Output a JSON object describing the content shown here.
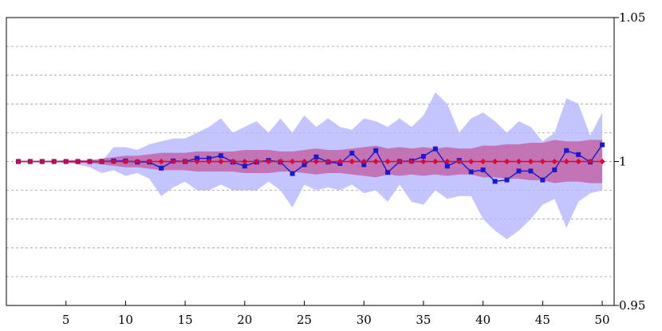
{
  "chart_data": {
    "type": "line",
    "title": "",
    "xlabel": "",
    "ylabel": "",
    "xlim": [
      0,
      51
    ],
    "ylim": [
      0.95,
      1.05
    ],
    "y_axis_side": "right",
    "grid": "horizontal dashed",
    "x_ticks": [
      5,
      10,
      15,
      20,
      25,
      30,
      35,
      40,
      45,
      50
    ],
    "x_tick_labels": [
      "5",
      "10",
      "15",
      "20",
      "25",
      "30",
      "35",
      "40",
      "45",
      "50"
    ],
    "y_ticks": [
      0.95,
      1,
      1.05
    ],
    "y_tick_labels": [
      "0.95",
      "1",
      "1.05"
    ],
    "y_gridlines": [
      0.96,
      0.97,
      0.98,
      0.99,
      1.0,
      1.01,
      1.02,
      1.03,
      1.04
    ],
    "x": [
      1,
      2,
      3,
      4,
      5,
      6,
      7,
      8,
      9,
      10,
      11,
      12,
      13,
      14,
      15,
      16,
      17,
      18,
      19,
      20,
      21,
      22,
      23,
      24,
      25,
      26,
      27,
      28,
      29,
      30,
      31,
      32,
      33,
      34,
      35,
      36,
      37,
      38,
      39,
      40,
      41,
      42,
      43,
      44,
      45,
      46,
      47,
      48,
      49,
      50
    ],
    "series": [
      {
        "marker": "square",
        "color": "#1a1acc",
        "values": [
          1.0,
          1.0,
          1.0,
          1.0,
          1.0,
          1.0,
          1.0,
          1.0,
          1.0002,
          1.0002,
          0.9998,
          0.9998,
          0.9977,
          1.0002,
          1.0,
          1.0011,
          1.0011,
          1.002,
          0.9998,
          0.9984,
          0.9998,
          1.0004,
          0.9998,
          0.9958,
          0.9989,
          1.0016,
          0.9998,
          0.9993,
          1.0029,
          0.9989,
          1.0038,
          0.9962,
          1.0,
          1.0002,
          1.0018,
          1.0044,
          0.9984,
          1.0004,
          0.9964,
          0.9971,
          0.9931,
          0.9936,
          0.9967,
          0.9967,
          0.9936,
          0.9971,
          1.0038,
          1.0024,
          0.9998,
          1.0058
        ],
        "band": {
          "color": "#b5b5ff",
          "upper": [
            1.0,
            1.0,
            1.0,
            1.0,
            1.0,
            1.0,
            1.0,
            1.0,
            1.005,
            1.005,
            1.004,
            1.006,
            1.007,
            1.008,
            1.008,
            1.01,
            1.012,
            1.015,
            1.01,
            1.012,
            1.014,
            1.01,
            1.015,
            1.01,
            1.016,
            1.012,
            1.015,
            1.012,
            1.011,
            1.015,
            1.014,
            1.012,
            1.015,
            1.012,
            1.016,
            1.024,
            1.02,
            1.01,
            1.015,
            1.017,
            1.014,
            1.01,
            1.014,
            1.012,
            1.007,
            1.01,
            1.022,
            1.02,
            1.009,
            1.017
          ],
          "lower": [
            1.0,
            1.0,
            1.0,
            1.0,
            1.0,
            0.999,
            0.998,
            0.996,
            0.997,
            0.995,
            0.996,
            0.994,
            0.988,
            0.991,
            0.993,
            0.99,
            0.99,
            0.992,
            0.99,
            0.99,
            0.99,
            0.993,
            0.99,
            0.984,
            0.992,
            0.99,
            0.991,
            0.99,
            0.992,
            0.989,
            0.99,
            0.986,
            0.992,
            0.986,
            0.985,
            0.99,
            0.987,
            0.988,
            0.988,
            0.98,
            0.976,
            0.973,
            0.976,
            0.98,
            0.985,
            0.987,
            0.977,
            0.986,
            0.989,
            0.99
          ]
        }
      },
      {
        "marker": "diamond",
        "color": "#e0003a",
        "values": [
          1.0,
          1.0,
          1.0,
          1.0,
          1.0,
          1.0,
          1.0,
          1.0,
          1.0,
          1.0,
          1.0,
          1.0,
          1.0,
          1.0,
          1.0,
          1.0,
          1.0,
          1.0,
          1.0,
          1.0,
          1.0,
          1.0,
          1.0,
          1.0,
          1.0,
          1.0,
          1.0,
          1.0,
          1.0,
          1.0,
          1.0,
          1.0,
          1.0,
          1.0,
          1.0,
          1.0,
          1.0,
          1.0,
          1.0,
          1.0,
          1.0,
          1.0,
          1.0,
          1.0,
          1.0,
          1.0,
          1.0,
          1.0,
          1.0,
          1.0
        ],
        "band": {
          "color": "#c25a9c",
          "upper": [
            1.0,
            1.0,
            1.0,
            1.0,
            1.0005,
            1.0005,
            1.0005,
            1.001,
            1.0015,
            1.002,
            1.002,
            1.0025,
            1.003,
            1.003,
            1.003,
            1.0035,
            1.0035,
            1.0035,
            1.0035,
            1.004,
            1.004,
            1.004,
            1.0035,
            1.0035,
            1.004,
            1.0045,
            1.004,
            1.004,
            1.0045,
            1.005,
            1.0055,
            1.0045,
            1.005,
            1.0045,
            1.005,
            1.0045,
            1.005,
            1.0045,
            1.0045,
            1.0055,
            1.0055,
            1.006,
            1.006,
            1.0065,
            1.0065,
            1.0075,
            1.007,
            1.007,
            1.0075,
            1.0075
          ],
          "lower": [
            1.0,
            1.0,
            1.0,
            1.0,
            0.9995,
            0.9995,
            0.9995,
            0.999,
            0.9985,
            0.998,
            0.998,
            0.9975,
            0.997,
            0.997,
            0.997,
            0.9965,
            0.9965,
            0.9965,
            0.9965,
            0.996,
            0.996,
            0.996,
            0.9965,
            0.9965,
            0.996,
            0.9955,
            0.996,
            0.996,
            0.9955,
            0.995,
            0.9945,
            0.9955,
            0.995,
            0.9955,
            0.995,
            0.9955,
            0.995,
            0.9955,
            0.9955,
            0.9945,
            0.9945,
            0.994,
            0.994,
            0.9935,
            0.9935,
            0.9925,
            0.993,
            0.993,
            0.9925,
            0.9925
          ]
        }
      }
    ]
  }
}
